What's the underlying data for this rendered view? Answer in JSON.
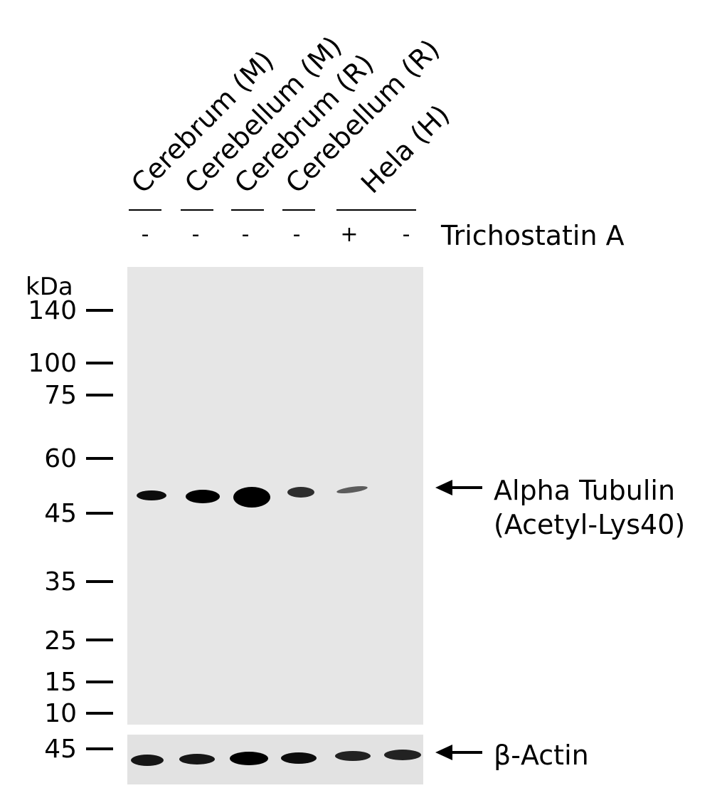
{
  "lanes": [
    {
      "name": "Cerebrum (M)",
      "trichostatin": "-"
    },
    {
      "name": "Cerebellum (M)",
      "trichostatin": "-"
    },
    {
      "name": "Cerebrum (R)",
      "trichostatin": "-"
    },
    {
      "name": "Cerebellum (R)",
      "trichostatin": "-"
    },
    {
      "name": "Hela (H)",
      "trichostatin": "+"
    },
    {
      "name": "",
      "trichostatin": "-"
    }
  ],
  "treatment_label": "Trichostatin A",
  "mw_unit": "kDa",
  "mw_markers": [
    "140",
    "100",
    "75",
    "60",
    "45",
    "35",
    "25",
    "15",
    "10"
  ],
  "loading_marker": "45",
  "targets": {
    "main_line1": "Alpha Tubulin",
    "main_line2": "(Acetyl-Lys40)",
    "loading": "β-Actin"
  },
  "band_intensity": {
    "alpha_tubulin": [
      0.8,
      0.9,
      1.0,
      0.6,
      0.35,
      0.0
    ],
    "beta_actin": [
      0.85,
      0.85,
      0.95,
      0.85,
      0.8,
      0.8
    ]
  }
}
